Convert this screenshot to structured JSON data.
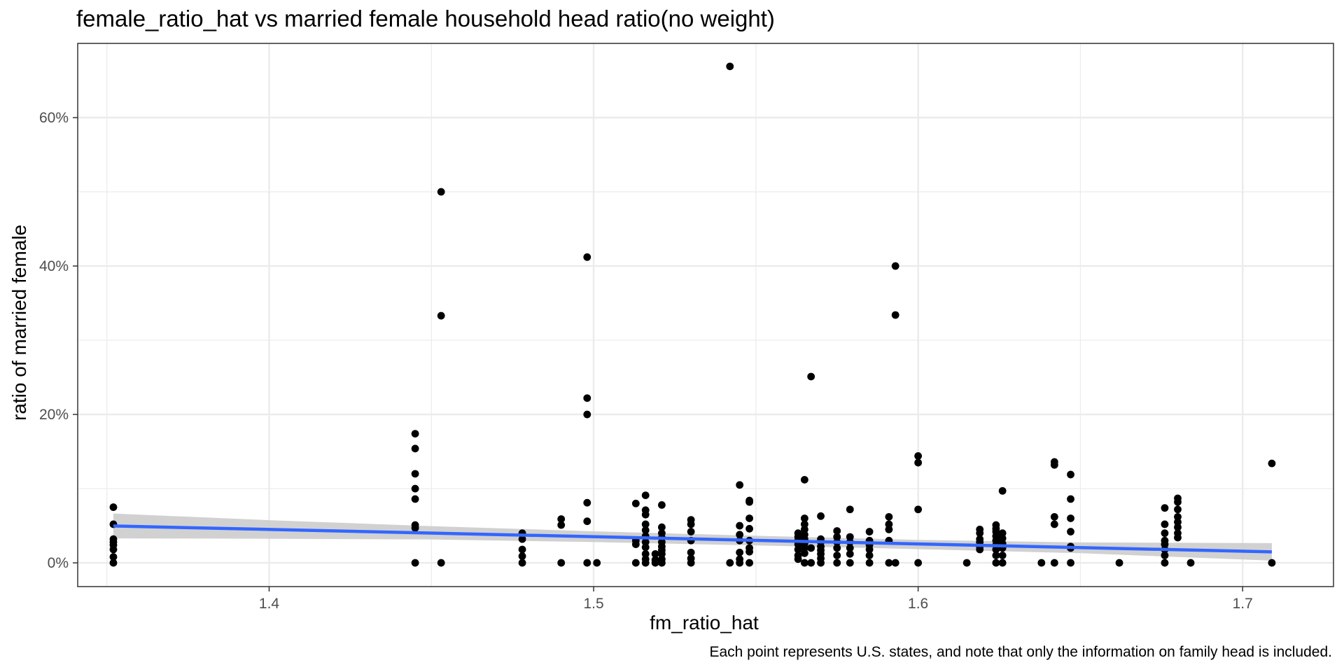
{
  "chart_data": {
    "type": "scatter",
    "title": "female_ratio_hat vs married female household head ratio(no weight)",
    "xlabel": "fm_ratio_hat",
    "ylabel": "ratio of married female",
    "caption": "Each point represents U.S. states, and note that only the information on family head is included.",
    "xlim": [
      1.341,
      1.728
    ],
    "ylim": [
      -0.032,
      0.7
    ],
    "x_ticks": [
      1.4,
      1.5,
      1.6,
      1.7
    ],
    "x_tick_labels": [
      "1.4",
      "1.5",
      "1.6",
      "1.7"
    ],
    "y_ticks": [
      0,
      0.2,
      0.4,
      0.6
    ],
    "y_tick_labels": [
      "0%",
      "20%",
      "40%",
      "60%"
    ],
    "grid": true,
    "legend": "none",
    "colors": {
      "points": "#000000",
      "fit_line": "#3366ff",
      "ribbon": "#cccccc",
      "grid": "#ebebeb",
      "border": "#333333"
    },
    "series": [
      {
        "kind": "points",
        "points": [
          [
            1.352,
            0.075
          ],
          [
            1.352,
            0.052
          ],
          [
            1.352,
            0.032
          ],
          [
            1.352,
            0.028
          ],
          [
            1.352,
            0.024
          ],
          [
            1.352,
            0.018
          ],
          [
            1.352,
            0.008
          ],
          [
            1.352,
            0
          ],
          [
            1.445,
            0.174
          ],
          [
            1.445,
            0.154
          ],
          [
            1.445,
            0.12
          ],
          [
            1.445,
            0.1
          ],
          [
            1.445,
            0.086
          ],
          [
            1.445,
            0.051
          ],
          [
            1.445,
            0.047
          ],
          [
            1.445,
            0
          ],
          [
            1.453,
            0.5
          ],
          [
            1.453,
            0.333
          ],
          [
            1.453,
            0
          ],
          [
            1.478,
            0.04
          ],
          [
            1.478,
            0.032
          ],
          [
            1.478,
            0.018
          ],
          [
            1.478,
            0.009
          ],
          [
            1.478,
            0
          ],
          [
            1.49,
            0.059
          ],
          [
            1.49,
            0.051
          ],
          [
            1.49,
            0
          ],
          [
            1.498,
            0.412
          ],
          [
            1.498,
            0.222
          ],
          [
            1.498,
            0.2
          ],
          [
            1.498,
            0.081
          ],
          [
            1.498,
            0.056
          ],
          [
            1.498,
            0
          ],
          [
            1.501,
            0
          ],
          [
            1.513,
            0.08
          ],
          [
            1.513,
            0.03
          ],
          [
            1.513,
            0.025
          ],
          [
            1.513,
            0
          ],
          [
            1.516,
            0.091
          ],
          [
            1.516,
            0.071
          ],
          [
            1.516,
            0.065
          ],
          [
            1.516,
            0.052
          ],
          [
            1.516,
            0.044
          ],
          [
            1.516,
            0.036
          ],
          [
            1.516,
            0.028
          ],
          [
            1.516,
            0.021
          ],
          [
            1.516,
            0.012
          ],
          [
            1.516,
            0.005
          ],
          [
            1.516,
            0
          ],
          [
            1.519,
            0.012
          ],
          [
            1.519,
            0.004
          ],
          [
            1.519,
            0
          ],
          [
            1.521,
            0.078
          ],
          [
            1.521,
            0.048
          ],
          [
            1.521,
            0.04
          ],
          [
            1.521,
            0.034
          ],
          [
            1.521,
            0.028
          ],
          [
            1.521,
            0.022
          ],
          [
            1.521,
            0.017
          ],
          [
            1.521,
            0.012
          ],
          [
            1.521,
            0.005
          ],
          [
            1.521,
            0
          ],
          [
            1.53,
            0.058
          ],
          [
            1.53,
            0.052
          ],
          [
            1.53,
            0.042
          ],
          [
            1.53,
            0.03
          ],
          [
            1.53,
            0.014
          ],
          [
            1.53,
            0.006
          ],
          [
            1.53,
            0
          ],
          [
            1.542,
            0.669
          ],
          [
            1.542,
            0
          ],
          [
            1.545,
            0.105
          ],
          [
            1.545,
            0.05
          ],
          [
            1.545,
            0.038
          ],
          [
            1.545,
            0.03
          ],
          [
            1.545,
            0.014
          ],
          [
            1.545,
            0.005
          ],
          [
            1.545,
            0
          ],
          [
            1.548,
            0.084
          ],
          [
            1.548,
            0.082
          ],
          [
            1.548,
            0.06
          ],
          [
            1.548,
            0.046
          ],
          [
            1.548,
            0.03
          ],
          [
            1.548,
            0.02
          ],
          [
            1.548,
            0.015
          ],
          [
            1.548,
            0
          ],
          [
            1.563,
            0.04
          ],
          [
            1.563,
            0.035
          ],
          [
            1.563,
            0.03
          ],
          [
            1.563,
            0.025
          ],
          [
            1.563,
            0.018
          ],
          [
            1.563,
            0.01
          ],
          [
            1.563,
            0.005
          ],
          [
            1.565,
            0.112
          ],
          [
            1.565,
            0.06
          ],
          [
            1.565,
            0.052
          ],
          [
            1.565,
            0.045
          ],
          [
            1.565,
            0.038
          ],
          [
            1.565,
            0.032
          ],
          [
            1.565,
            0.026
          ],
          [
            1.565,
            0.02
          ],
          [
            1.565,
            0.013
          ],
          [
            1.565,
            0
          ],
          [
            1.567,
            0.251
          ],
          [
            1.567,
            0.02
          ],
          [
            1.567,
            0
          ],
          [
            1.57,
            0.063
          ],
          [
            1.57,
            0.032
          ],
          [
            1.57,
            0.028
          ],
          [
            1.57,
            0.022
          ],
          [
            1.57,
            0.017
          ],
          [
            1.57,
            0.012
          ],
          [
            1.57,
            0.006
          ],
          [
            1.57,
            0
          ],
          [
            1.575,
            0.043
          ],
          [
            1.575,
            0.035
          ],
          [
            1.575,
            0.028
          ],
          [
            1.575,
            0.02
          ],
          [
            1.575,
            0.01
          ],
          [
            1.575,
            0
          ],
          [
            1.579,
            0.072
          ],
          [
            1.579,
            0.035
          ],
          [
            1.579,
            0.028
          ],
          [
            1.579,
            0.02
          ],
          [
            1.579,
            0.012
          ],
          [
            1.579,
            0
          ],
          [
            1.585,
            0.042
          ],
          [
            1.585,
            0.03
          ],
          [
            1.585,
            0.024
          ],
          [
            1.585,
            0.018
          ],
          [
            1.585,
            0.01
          ],
          [
            1.585,
            0
          ],
          [
            1.591,
            0.062
          ],
          [
            1.591,
            0.052
          ],
          [
            1.591,
            0.045
          ],
          [
            1.591,
            0.03
          ],
          [
            1.591,
            0
          ],
          [
            1.593,
            0.4
          ],
          [
            1.593,
            0.334
          ],
          [
            1.593,
            0
          ],
          [
            1.6,
            0.144
          ],
          [
            1.6,
            0.135
          ],
          [
            1.6,
            0.072
          ],
          [
            1.6,
            0
          ],
          [
            1.615,
            0
          ],
          [
            1.619,
            0.045
          ],
          [
            1.619,
            0.04
          ],
          [
            1.619,
            0.032
          ],
          [
            1.619,
            0.028
          ],
          [
            1.619,
            0.022
          ],
          [
            1.619,
            0.018
          ],
          [
            1.624,
            0.051
          ],
          [
            1.624,
            0.046
          ],
          [
            1.624,
            0.042
          ],
          [
            1.624,
            0.036
          ],
          [
            1.624,
            0.03
          ],
          [
            1.624,
            0.024
          ],
          [
            1.624,
            0.018
          ],
          [
            1.624,
            0.01
          ],
          [
            1.624,
            0
          ],
          [
            1.626,
            0.097
          ],
          [
            1.626,
            0.04
          ],
          [
            1.626,
            0.033
          ],
          [
            1.626,
            0.026
          ],
          [
            1.626,
            0.02
          ],
          [
            1.626,
            0.01
          ],
          [
            1.626,
            0
          ],
          [
            1.638,
            0
          ],
          [
            1.642,
            0.136
          ],
          [
            1.642,
            0.132
          ],
          [
            1.642,
            0.062
          ],
          [
            1.642,
            0.052
          ],
          [
            1.642,
            0
          ],
          [
            1.647,
            0.119
          ],
          [
            1.647,
            0.086
          ],
          [
            1.647,
            0.06
          ],
          [
            1.647,
            0.042
          ],
          [
            1.647,
            0.022
          ],
          [
            1.647,
            0.02
          ],
          [
            1.647,
            0
          ],
          [
            1.662,
            0
          ],
          [
            1.676,
            0.074
          ],
          [
            1.676,
            0.052
          ],
          [
            1.676,
            0.04
          ],
          [
            1.676,
            0.03
          ],
          [
            1.676,
            0.025
          ],
          [
            1.676,
            0.018
          ],
          [
            1.676,
            0.01
          ],
          [
            1.676,
            0
          ],
          [
            1.68,
            0.087
          ],
          [
            1.68,
            0.082
          ],
          [
            1.68,
            0.072
          ],
          [
            1.68,
            0.062
          ],
          [
            1.68,
            0.055
          ],
          [
            1.68,
            0.048
          ],
          [
            1.68,
            0.04
          ],
          [
            1.68,
            0.034
          ],
          [
            1.684,
            0
          ],
          [
            1.709,
            0.134
          ],
          [
            1.709,
            0
          ]
        ]
      },
      {
        "kind": "linear_fit",
        "x": [
          1.352,
          1.709
        ],
        "y": [
          0.0497,
          0.0148
        ]
      },
      {
        "kind": "confidence_band",
        "x": [
          1.352,
          1.4,
          1.45,
          1.5,
          1.55,
          1.6,
          1.65,
          1.709
        ],
        "lower": [
          0.033,
          0.0325,
          0.0315,
          0.028,
          0.0235,
          0.0185,
          0.013,
          0.003
        ],
        "upper": [
          0.0665,
          0.0575,
          0.0495,
          0.0425,
          0.0365,
          0.031,
          0.0275,
          0.0266
        ]
      }
    ]
  }
}
